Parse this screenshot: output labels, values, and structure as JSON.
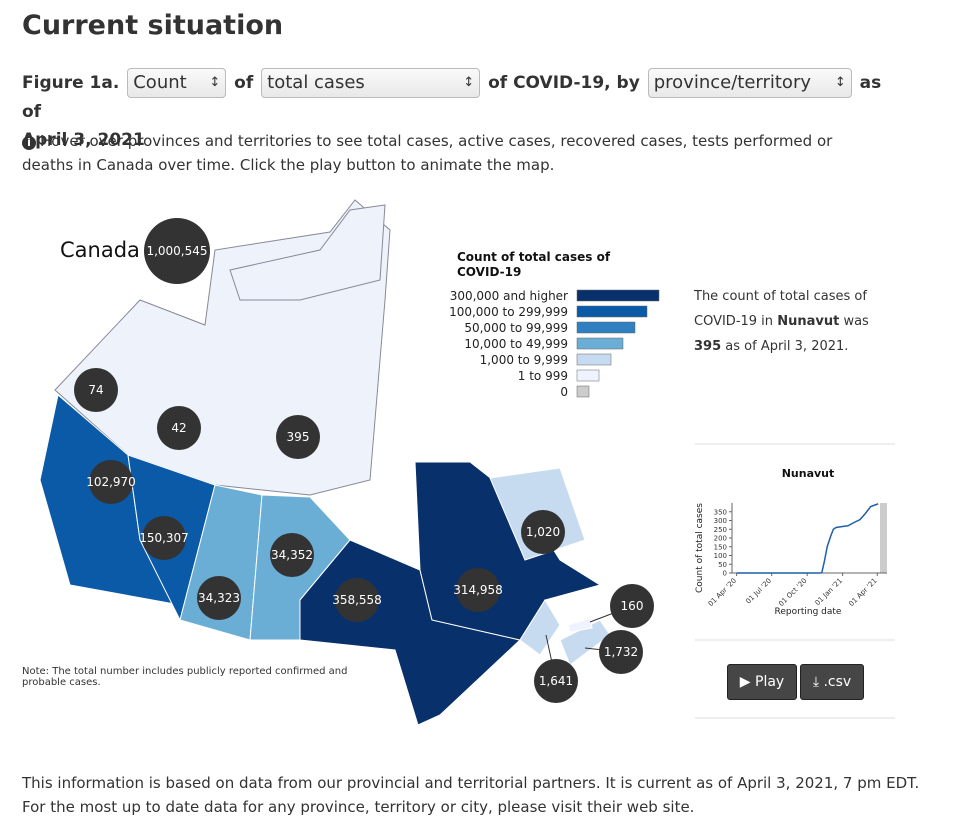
{
  "heading": "Current situation",
  "figure": {
    "label": "Figure 1a.",
    "measure": "Count",
    "of1": "of",
    "metric": "total cases",
    "of2": "of COVID-19, by",
    "geo": "province/territory",
    "as_of": "as of",
    "date": "April 3, 2021"
  },
  "hint": "Hover over provinces and territories to see total cases, active cases, recovered cases, tests performed or deaths in Canada over time. Click the play button to animate the map.",
  "map": {
    "canada_label": "Canada",
    "canada_total": "1,000,545",
    "bubbles": [
      "74",
      "42",
      "395",
      "102,970",
      "150,307",
      "34,323",
      "34,352",
      "358,558",
      "314,958",
      "1,020",
      "160",
      "1,732",
      "1,641"
    ],
    "note": "Note: The total number includes publicly reported confirmed and probable cases."
  },
  "legend": {
    "title": "Count of total cases of COVID-19",
    "items": [
      "300,000 and higher",
      "100,000 to 299,999",
      "50,000 to 99,999",
      "10,000 to 49,999",
      "1,000 to 9,999",
      "1 to 999",
      "0"
    ],
    "colors": [
      "#08306b",
      "#0b5aa8",
      "#2f7fc1",
      "#6aaed6",
      "#c6dbef",
      "#eff3ff",
      "#cccccc"
    ]
  },
  "info": {
    "before": "The count of total cases of COVID-19 in",
    "region": "Nunavut",
    "middle": "was",
    "value": "395",
    "after": "as of April 3, 2021."
  },
  "chart_data": {
    "type": "line",
    "title": "Nunavut",
    "x_label": "Reporting date",
    "y_label": "Count of total cases",
    "x": [
      "2020-04-01",
      "2020-06-01",
      "2020-08-01",
      "2020-10-01",
      "2020-11-01",
      "2020-11-08",
      "2020-11-15",
      "2020-11-22",
      "2020-12-01",
      "2020-12-08",
      "2020-12-15",
      "2021-01-01",
      "2021-01-15",
      "2021-02-01",
      "2021-02-15",
      "2021-03-01",
      "2021-03-15",
      "2021-04-03"
    ],
    "series": [
      {
        "name": "Nunavut",
        "color": "#1f5fa8",
        "values": [
          0,
          0,
          0,
          0,
          0,
          1,
          70,
          150,
          210,
          250,
          260,
          266,
          270,
          290,
          305,
          340,
          380,
          395
        ]
      }
    ],
    "xlim": [
      "2020-03-20",
      "2021-04-08"
    ],
    "xticks": [
      {
        "value": "2020-04-01",
        "label": "01 Apr '20"
      },
      {
        "value": "2020-07-01",
        "label": "01 Jul '20"
      },
      {
        "value": "2020-10-01",
        "label": "01 Oct '20"
      },
      {
        "value": "2021-01-01",
        "label": "01 Jan '21"
      },
      {
        "value": "2021-04-01",
        "label": "01 Apr '21"
      }
    ],
    "ylim": [
      0,
      400
    ],
    "yticks": [
      0,
      50,
      100,
      150,
      200,
      250,
      300,
      350
    ]
  },
  "buttons": {
    "play": "Play",
    "csv": ".csv"
  },
  "footer": "This information is based on data from our provincial and territorial partners. It is current as of April 3, 2021, 7 pm EDT. For the most up to date data for any province, territory or city, please visit their web site."
}
